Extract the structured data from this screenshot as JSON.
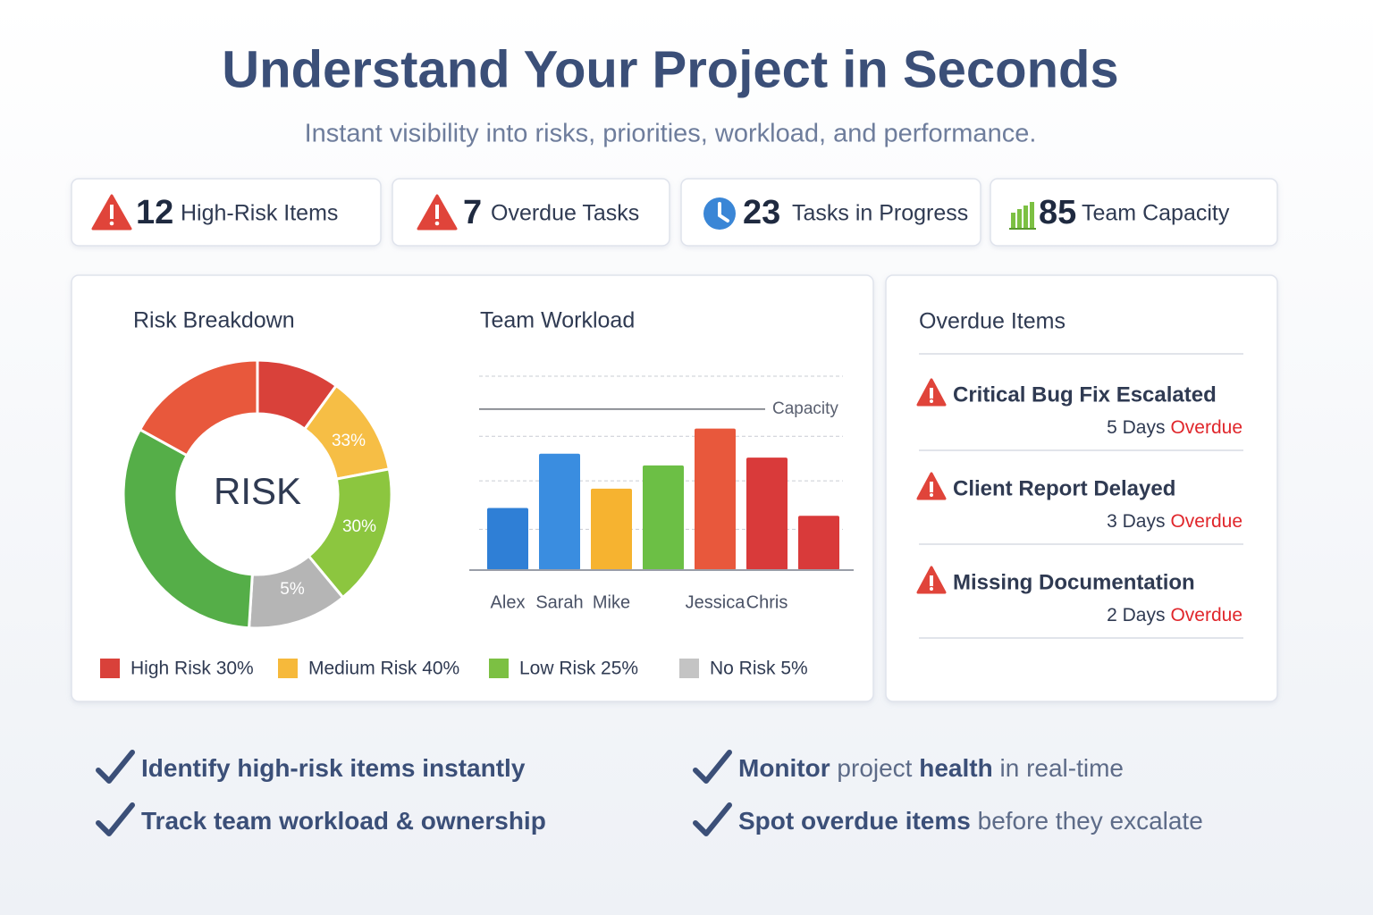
{
  "header": {
    "title": "Understand Your Project in Seconds",
    "subtitle": "Instant visibility into risks, priorities, workload, and performance."
  },
  "stats": [
    {
      "value": 12,
      "label": "High-Risk Items"
    },
    {
      "value": 7,
      "label": "Overdue Tasks"
    },
    {
      "value": 23,
      "label": "Tasks in Progress"
    },
    {
      "value": 85,
      "label": "Team Capacity"
    }
  ],
  "chart_data": [
    {
      "type": "pie",
      "title": "Risk Breakdown",
      "center_label": "RISK",
      "donut": true,
      "values": [
        10,
        12,
        17,
        12,
        32,
        17
      ],
      "colors": [
        "#d9413a",
        "#f6be45",
        "#8cc63f",
        "#b5b5b5",
        "#55ae48",
        "#e8583c"
      ],
      "annotations": [
        "33%",
        "30%",
        "5%"
      ],
      "legend": [
        {
          "label": "High Risk 30%",
          "color": "#d9413a"
        },
        {
          "label": "Medium Risk 40%",
          "color": "#f6b93b"
        },
        {
          "label": "Low Risk 25%",
          "color": "#7cc043"
        },
        {
          "label": "No Risk 5%",
          "color": "#c4c4c4"
        }
      ]
    },
    {
      "type": "bar",
      "title": "Team Workload",
      "categories": [
        "Alex",
        "Sarah",
        "Mike",
        null,
        "Jessica",
        "Chris",
        null
      ],
      "values": [
        32,
        60,
        42,
        54,
        73,
        58,
        28
      ],
      "colors": [
        "#2f7fd6",
        "#3a8de0",
        "#f6b330",
        "#6cbf45",
        "#e8583c",
        "#d93a3a",
        "#d93a3a"
      ],
      "ylim": [
        0,
        100
      ],
      "gridlines": [
        21,
        46,
        69,
        100
      ],
      "reference_line": {
        "value": 83,
        "label": "Capacity"
      }
    }
  ],
  "overdue": {
    "title": "Overdue Items",
    "items": [
      {
        "name": "Critical Bug Fix Escalated",
        "days": "5 Days",
        "status": "Overdue"
      },
      {
        "name": "Client Report Delayed",
        "days": "3 Days",
        "status": "Overdue"
      },
      {
        "name": "Missing Documentation",
        "days": "2 Days",
        "status": "Overdue"
      }
    ]
  },
  "benefits": [
    [
      {
        "text": "Identify high-risk items instantly",
        "bold": true
      }
    ],
    [
      {
        "text": "Track team workload & ownership",
        "bold": true
      }
    ],
    [
      {
        "text": "Monitor",
        "bold": true
      },
      {
        "text": " project ",
        "bold": false
      },
      {
        "text": "health",
        "bold": true
      },
      {
        "text": " in real-time",
        "bold": false
      }
    ],
    [
      {
        "text": "Spot overdue items",
        "bold": true
      },
      {
        "text": " before they excalate",
        "bold": false
      }
    ]
  ]
}
